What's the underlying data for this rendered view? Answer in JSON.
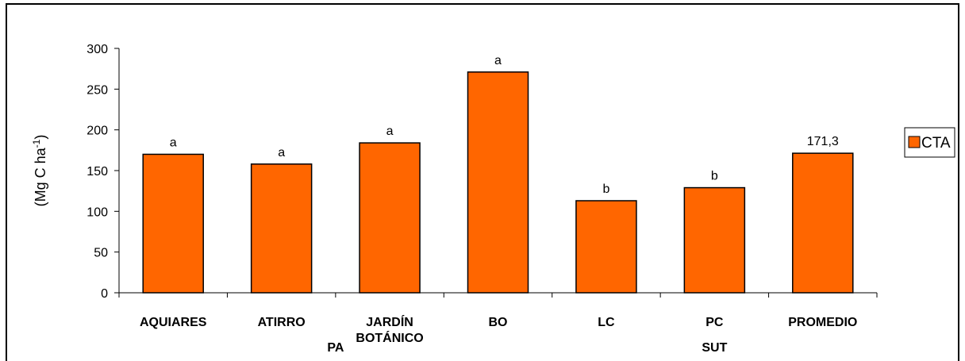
{
  "chart_data": {
    "type": "bar",
    "title": "",
    "ylabel": "(Mg C ha-1)",
    "ylabel_main": "(Mg C ha",
    "ylabel_sup": "-1",
    "ylabel_close": ")",
    "ylim": [
      0,
      300
    ],
    "yticks": [
      0,
      50,
      100,
      150,
      200,
      250,
      300
    ],
    "categories": [
      "AQUIARES",
      "ATIRRO",
      "JARDÍN BOTÁNICO",
      "BO",
      "LC",
      "PC",
      "PROMEDIO"
    ],
    "category_lines": [
      [
        "AQUIARES"
      ],
      [
        "ATIRRO"
      ],
      [
        "JARDÍN",
        "BOTÁNICO"
      ],
      [
        "BO"
      ],
      [
        "LC"
      ],
      [
        "PC"
      ],
      [
        "PROMEDIO"
      ]
    ],
    "group_labels": [
      {
        "label": "PA",
        "categories": [
          "ATIRRO",
          "JARDÍN BOTÁNICO"
        ]
      },
      {
        "label": "SUT",
        "categories": [
          "LC",
          "PC",
          "PROMEDIO"
        ]
      }
    ],
    "series": [
      {
        "name": "CTA",
        "color": "#ff6600",
        "values": [
          170,
          158,
          184,
          271,
          113,
          129,
          171.3
        ]
      }
    ],
    "annotations": [
      "a",
      "a",
      "a",
      "a",
      "b",
      "b",
      "171,3"
    ],
    "legend": {
      "position": "right",
      "label": "CTA"
    },
    "grid": false
  }
}
